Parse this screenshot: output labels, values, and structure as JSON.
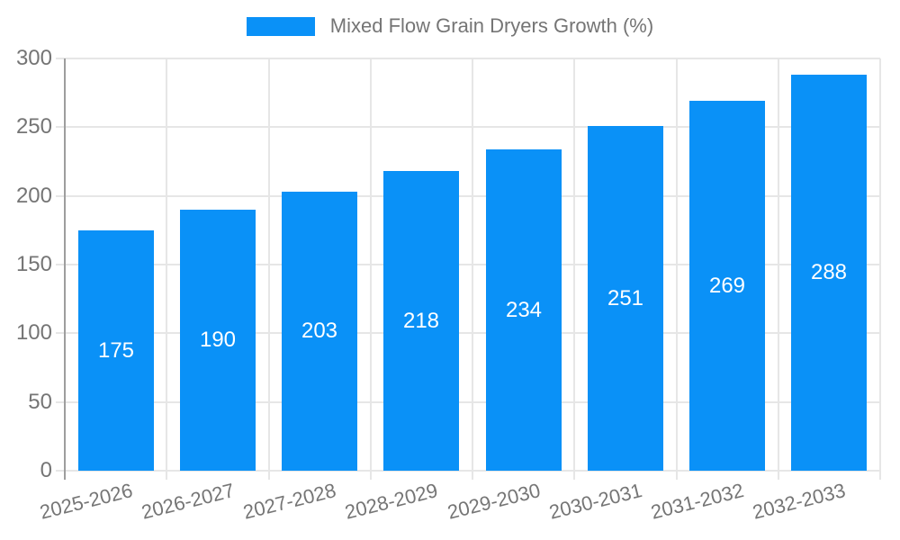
{
  "chart_data": {
    "type": "bar",
    "legend": "Mixed Flow Grain Dryers Growth (%)",
    "legend_position": "top-center",
    "categories": [
      "2025-2026",
      "2026-2027",
      "2027-2028",
      "2028-2029",
      "2029-2030",
      "2030-2031",
      "2031-2032",
      "2032-2033"
    ],
    "values": [
      175,
      190,
      203,
      218,
      234,
      251,
      269,
      288
    ],
    "value_labels_inside_bars": true,
    "xlabel": "",
    "ylabel": "",
    "ylim": [
      0,
      300
    ],
    "ytick_step": 50,
    "yticks": [
      0,
      50,
      100,
      150,
      200,
      250,
      300
    ],
    "grid": true,
    "colors": {
      "bar": "#0a91f7",
      "grid": "#e6e6e6",
      "axis_line": "#9e9e9e",
      "tick_text": "#757575",
      "value_label": "#ffffff",
      "background": "#ffffff"
    }
  }
}
